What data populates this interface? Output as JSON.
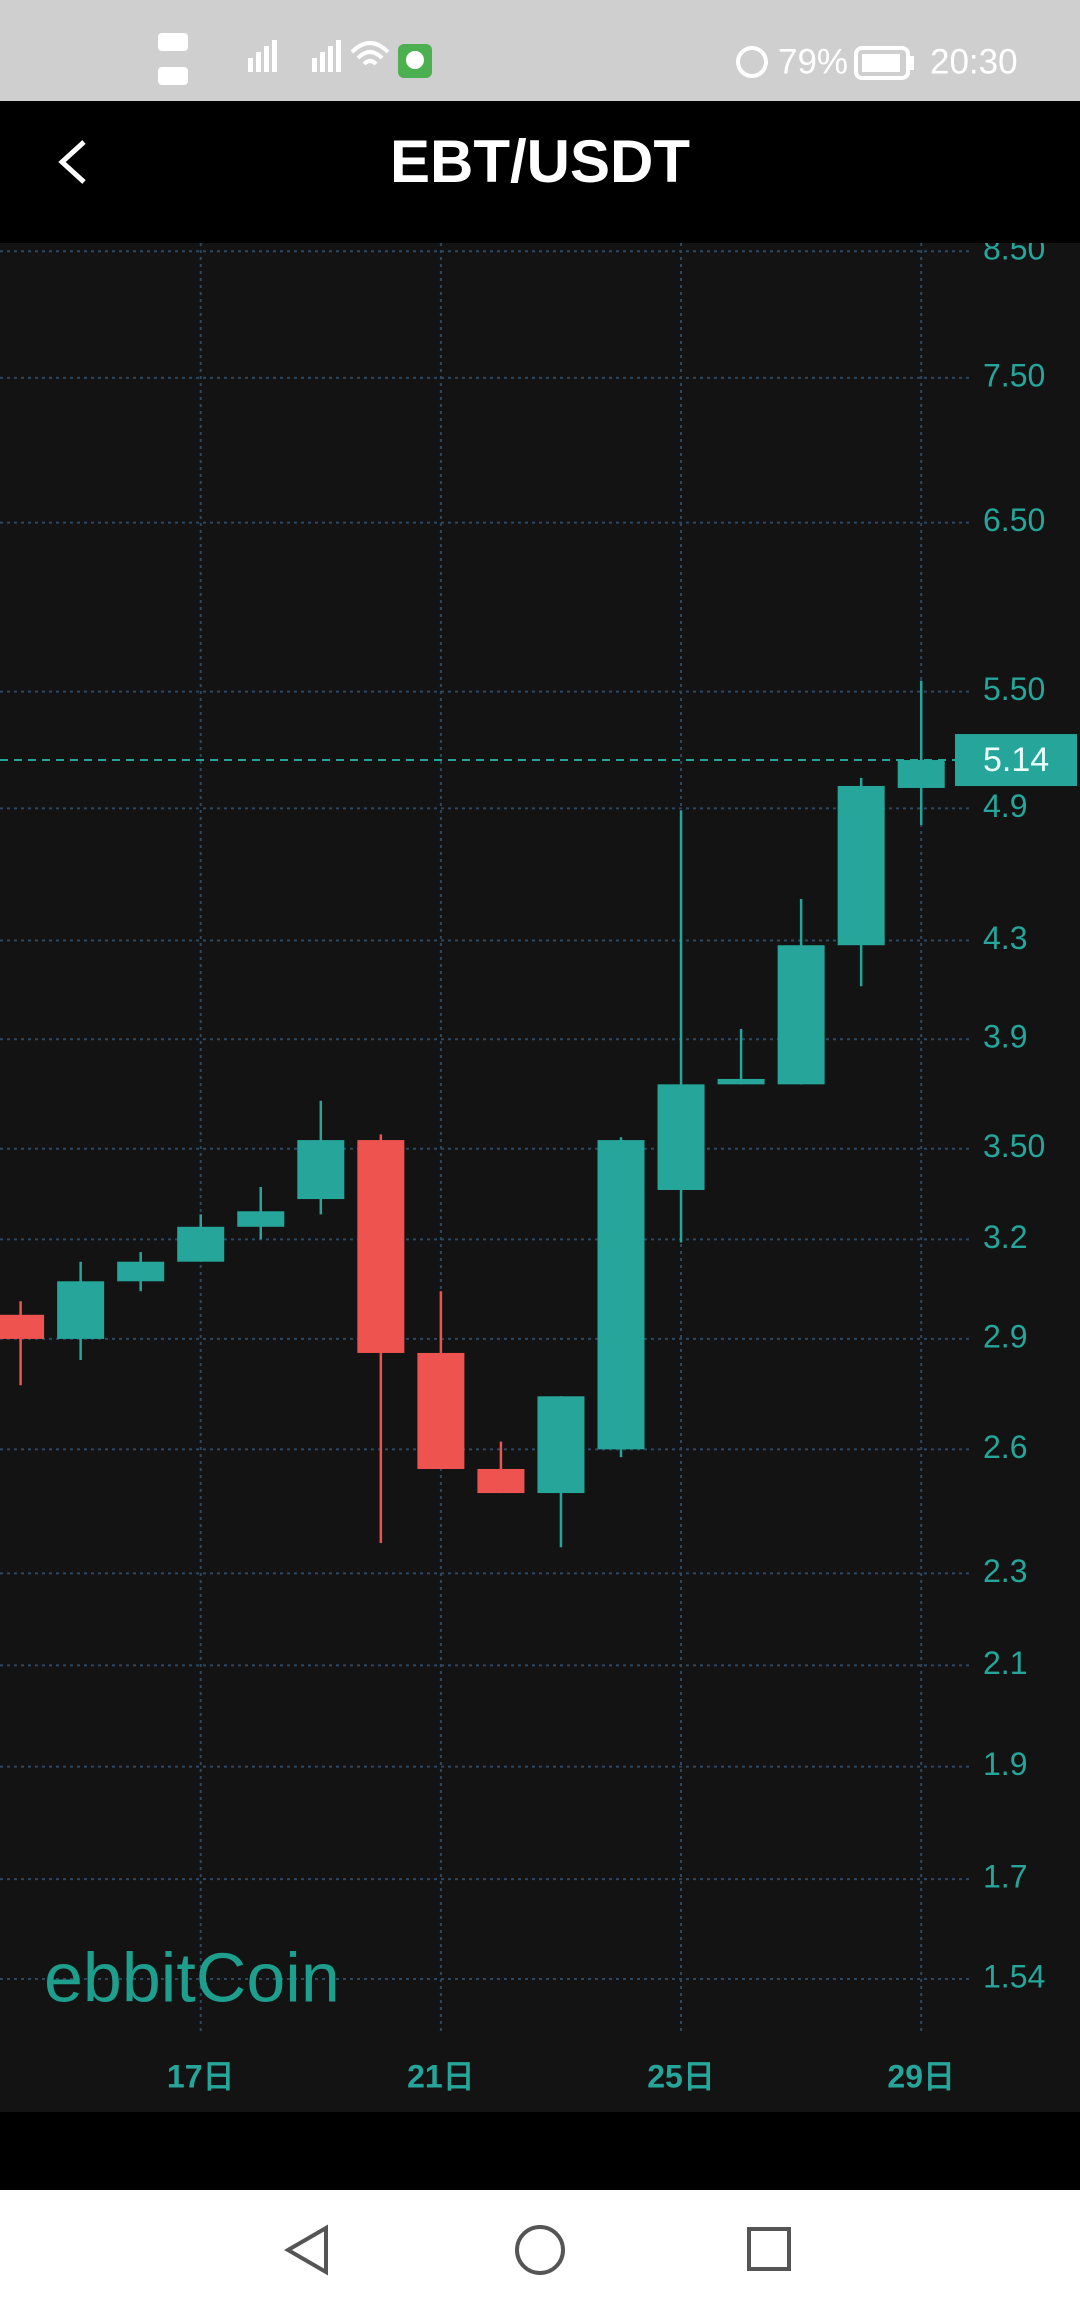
{
  "status_bar": {
    "battery": "79%",
    "time": "20:30"
  },
  "header": {
    "title": "EBT/USDT"
  },
  "chart_data": {
    "type": "candlestick",
    "watermark": "ebbitCoin",
    "categories": [
      null,
      null,
      null,
      "17日",
      null,
      null,
      null,
      "21日",
      null,
      null,
      null,
      "25日",
      null,
      null,
      null,
      "29日"
    ],
    "open": [
      2.97,
      2.9,
      3.07,
      3.13,
      3.24,
      3.33,
      3.53,
      2.86,
      2.55,
      2.49,
      2.6,
      3.36,
      3.73,
      3.73,
      4.28,
      5.0
    ],
    "high": [
      3.01,
      3.13,
      3.16,
      3.28,
      3.37,
      3.67,
      3.55,
      3.04,
      2.62,
      2.74,
      3.54,
      4.89,
      3.94,
      4.48,
      5.05,
      5.56
    ],
    "low": [
      2.77,
      2.84,
      3.04,
      3.13,
      3.2,
      3.28,
      2.37,
      2.55,
      2.49,
      2.36,
      2.58,
      3.19,
      3.73,
      3.73,
      4.11,
      4.82
    ],
    "close": [
      2.9,
      3.07,
      3.13,
      3.24,
      3.29,
      3.53,
      2.86,
      2.55,
      2.49,
      2.74,
      3.53,
      3.73,
      3.75,
      4.28,
      5.01,
      5.14
    ],
    "up_color": "#26a69a",
    "down_color": "#ef5350",
    "last_price": 5.14,
    "log_scale": true,
    "grid": true,
    "ylim": [
      1.46,
      8.57
    ],
    "yticks": [
      {
        "value": 8.5,
        "label": "8.50"
      },
      {
        "value": 7.5,
        "label": "7.50"
      },
      {
        "value": 6.5,
        "label": "6.50"
      },
      {
        "value": 5.5,
        "label": "5.50"
      },
      4.9,
      4.3,
      3.9,
      {
        "value": 3.5,
        "label": "3.50"
      },
      3.2,
      2.9,
      2.6,
      2.3,
      2.1,
      1.9,
      1.7,
      1.54
    ]
  }
}
